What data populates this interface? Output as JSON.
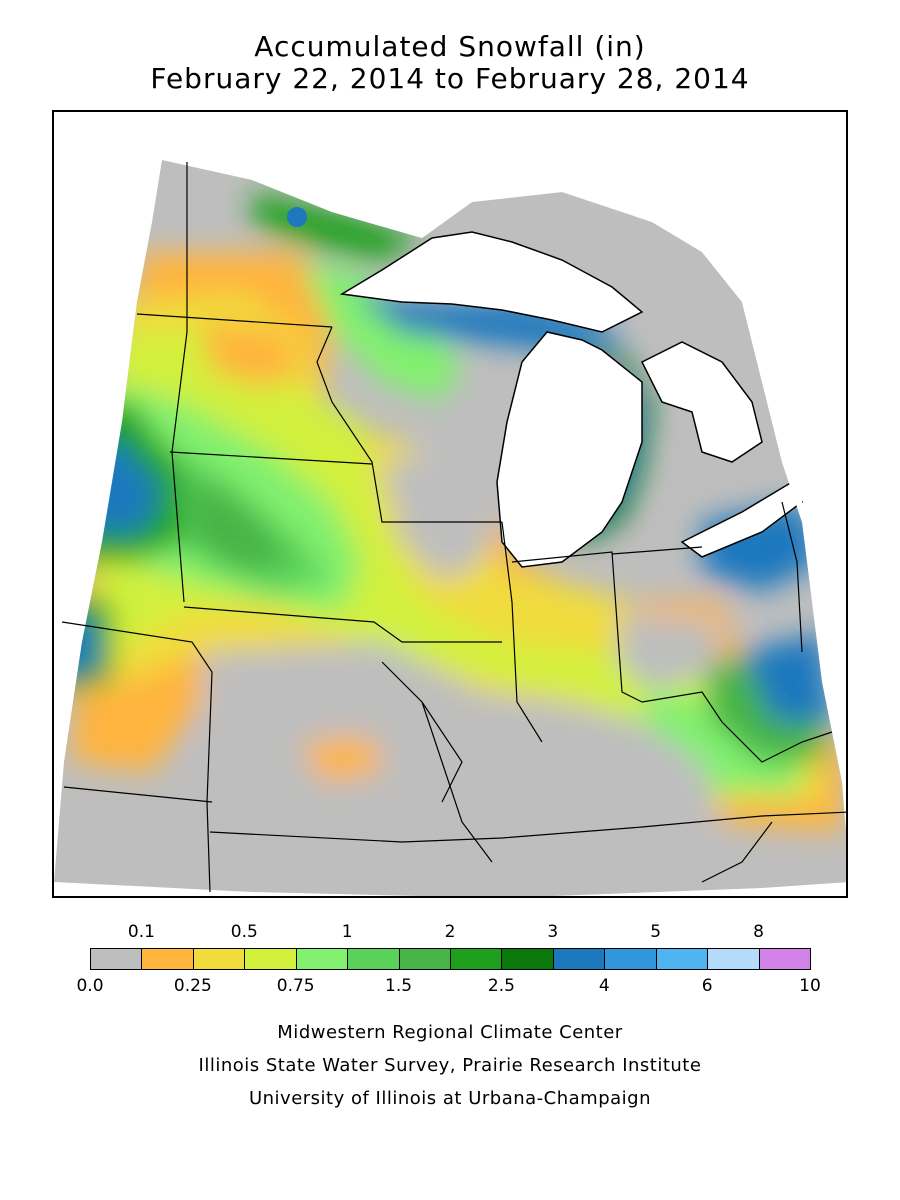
{
  "title": {
    "line1": "Accumulated Snowfall (in)",
    "line2": "February 22, 2014 to February 28, 2014"
  },
  "legend": {
    "colors": [
      "#bebebe",
      "#ffb43c",
      "#f0dc3c",
      "#d2f03c",
      "#82f06e",
      "#5ad25a",
      "#46b446",
      "#1ea01e",
      "#0a780a",
      "#1e78be",
      "#3296dc",
      "#50b4f0",
      "#b4dcfa",
      "#d282e6"
    ],
    "upper_labels": [
      "0.1",
      "0.5",
      "1",
      "2",
      "3",
      "5",
      "8"
    ],
    "lower_labels": [
      "0.0",
      "0.25",
      "0.75",
      "1.5",
      "2.5",
      "4",
      "6",
      "10"
    ]
  },
  "credits": {
    "line1": "Midwestern Regional Climate Center",
    "line2": "Illinois State Water Survey, Prairie Research Institute",
    "line3": "University of Illinois at Urbana-Champaign"
  }
}
